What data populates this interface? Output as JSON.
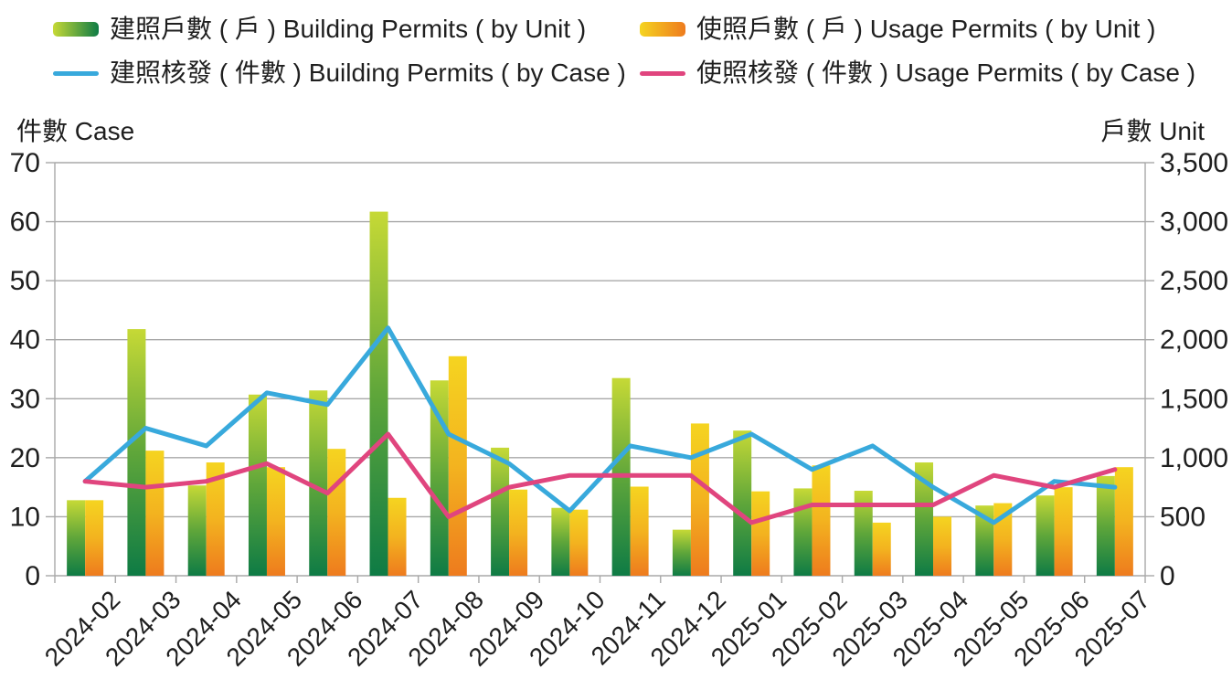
{
  "chart_data": {
    "type": "combo",
    "title": "",
    "legend_position": "top",
    "grid": true,
    "categories": [
      "2024-02",
      "2024-03",
      "2024-04",
      "2024-05",
      "2024-06",
      "2024-07",
      "2024-08",
      "2024-09",
      "2024-10",
      "2024-11",
      "2024-12",
      "2025-01",
      "2025-02",
      "2025-03",
      "2025-04",
      "2025-05",
      "2025-06",
      "2025-07"
    ],
    "series": [
      {
        "name": "建照戶數 ( 戶 ) Building Permits ( by Unit )",
        "type": "bar",
        "axis": "unit",
        "color_gradient": [
          "#C6D936",
          "#5FA63A",
          "#0E7B45"
        ],
        "values": [
          640,
          2090,
          765,
          1535,
          1570,
          3085,
          1655,
          1085,
          575,
          1675,
          390,
          1230,
          740,
          720,
          960,
          595,
          680,
          845
        ]
      },
      {
        "name": "使照戶數 ( 戶 ) Usage Permits ( by Unit )",
        "type": "bar",
        "axis": "unit",
        "color_gradient": [
          "#F5D420",
          "#F3B31F",
          "#EE7B1E"
        ],
        "values": [
          640,
          1060,
          960,
          920,
          1075,
          660,
          1860,
          730,
          560,
          755,
          1290,
          715,
          935,
          450,
          500,
          615,
          750,
          920
        ]
      },
      {
        "name": "建照核發 ( 件數 ) Building Permits ( by Case )",
        "type": "line",
        "axis": "case",
        "color": "#38A9DC",
        "values": [
          16,
          25,
          22,
          31,
          29,
          42,
          24,
          19,
          11,
          22,
          20,
          24,
          18,
          22,
          15,
          9,
          16,
          15
        ]
      },
      {
        "name": "使照核發 ( 件數 ) Usage Permits ( by Case )",
        "type": "line",
        "axis": "case",
        "color": "#E0457E",
        "values": [
          16,
          15,
          16,
          19,
          14,
          24,
          10,
          15,
          17,
          17,
          17,
          9,
          12,
          12,
          12,
          17,
          15,
          18
        ]
      }
    ],
    "case_axis": {
      "title": "件數 Case",
      "min": 0,
      "max": 70,
      "ticks": [
        "0",
        "10",
        "20",
        "30",
        "40",
        "50",
        "60",
        "70"
      ]
    },
    "unit_axis": {
      "title": "戶數 Unit",
      "min": 0,
      "max": 3500,
      "ticks": [
        "0",
        "500",
        "1,000",
        "1,500",
        "2,000",
        "2,500",
        "3,000",
        "3,500"
      ]
    }
  }
}
